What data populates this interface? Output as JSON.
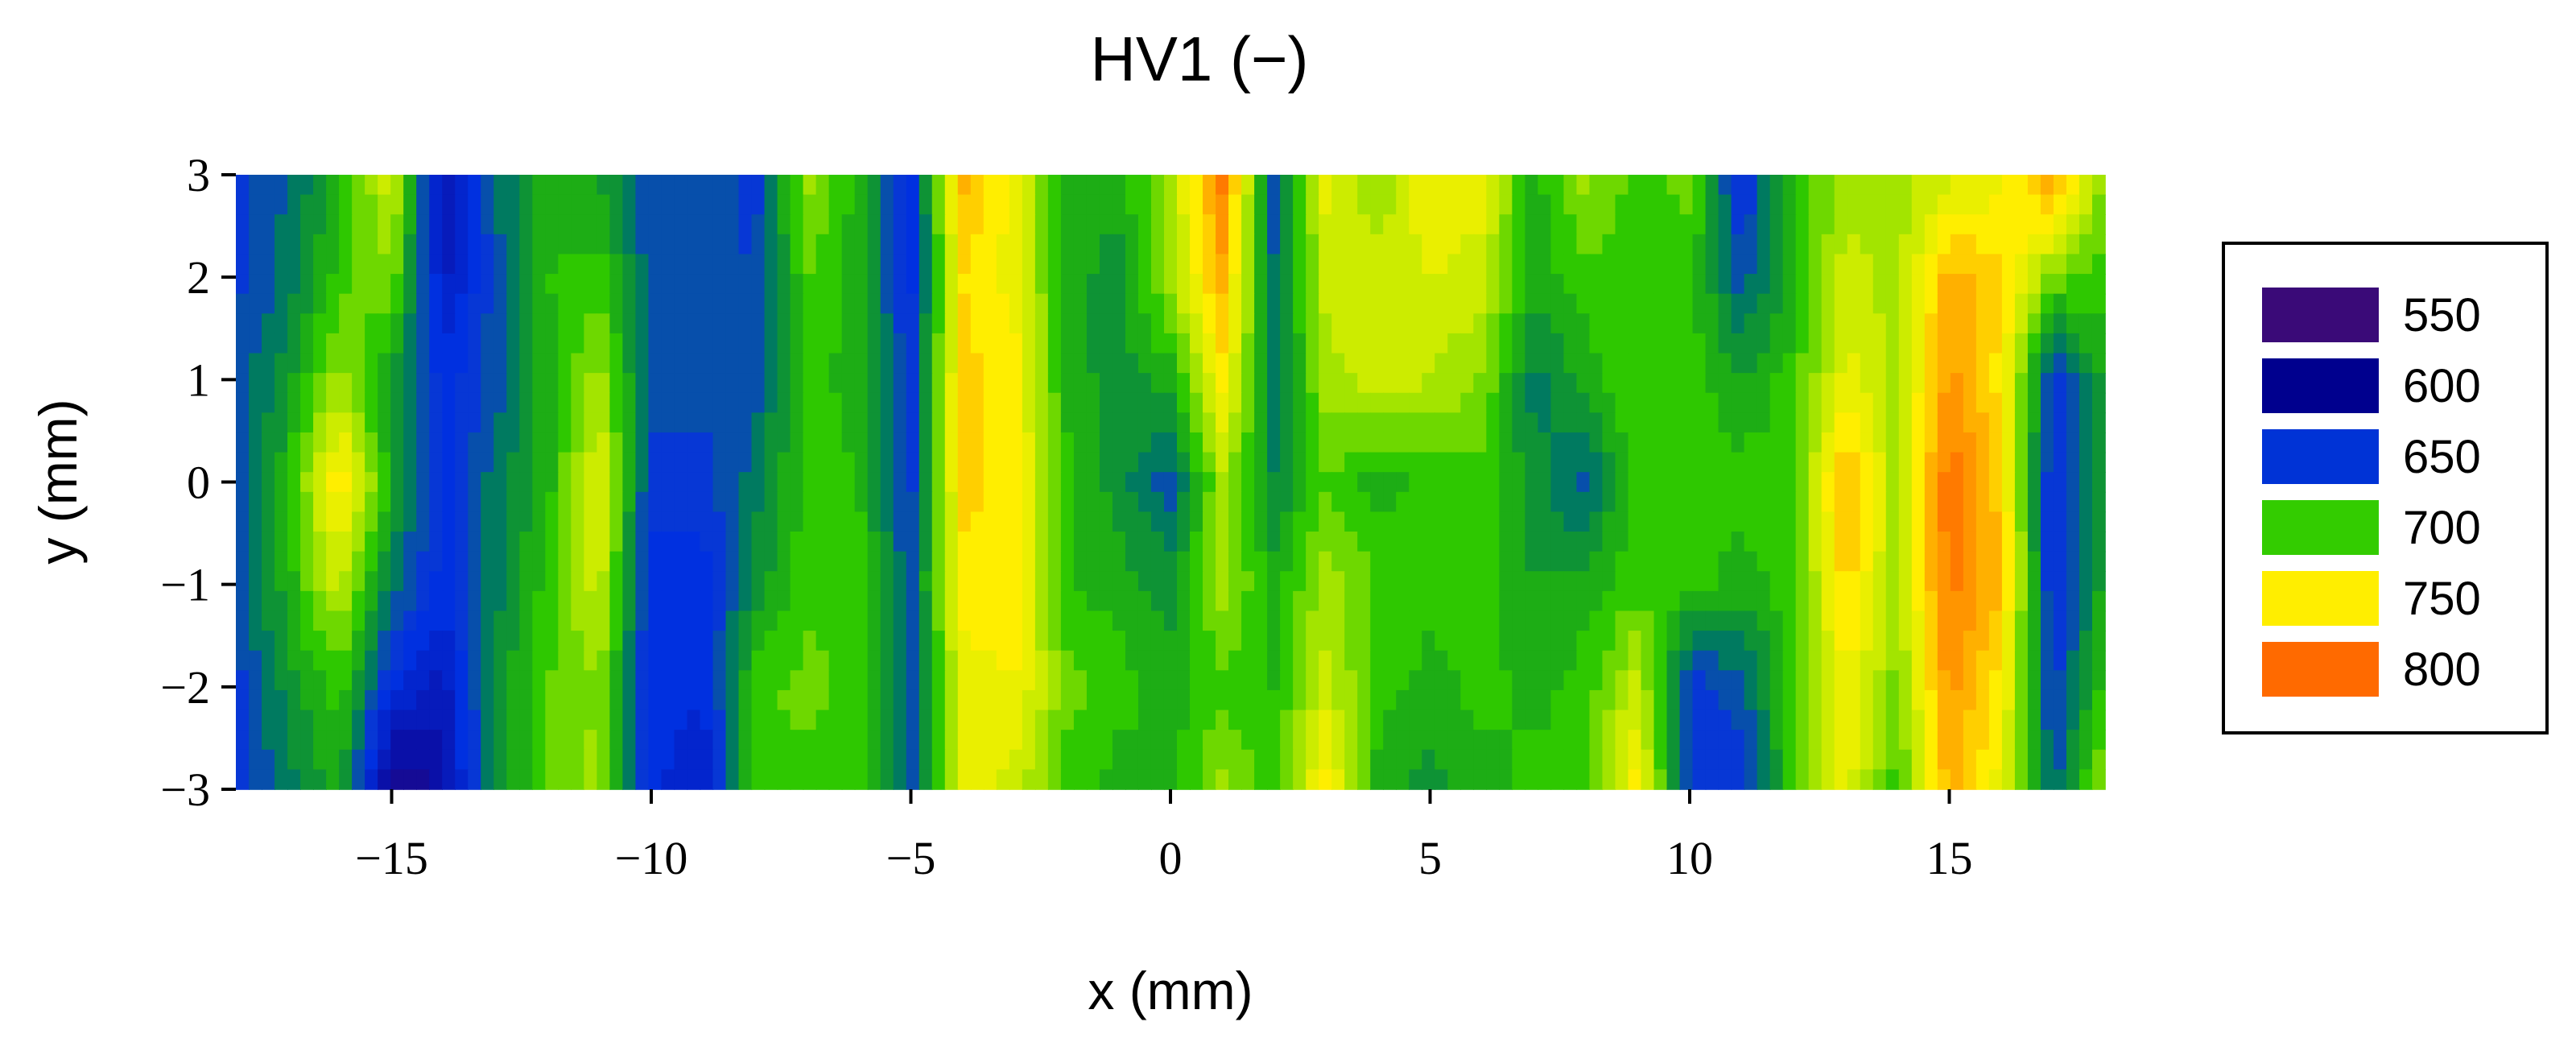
{
  "chart_data": {
    "type": "heatmap",
    "title": "HV1 (−)",
    "xlabel": "x (mm)",
    "ylabel": "y (mm)",
    "xlim": [
      -18,
      18
    ],
    "ylim": [
      -3,
      3
    ],
    "x_ticks": [
      -15,
      -10,
      -5,
      0,
      5,
      10,
      15
    ],
    "x_tick_labels": [
      "−15",
      "−10",
      "−5",
      "0",
      "5",
      "10",
      "15"
    ],
    "y_ticks": [
      3,
      2,
      1,
      0,
      -1,
      -2,
      -3
    ],
    "y_tick_labels": [
      "3",
      "2",
      "1",
      "0",
      "−1",
      "−2",
      "−3"
    ],
    "x": [
      -18,
      -17,
      -16,
      -15,
      -14,
      -13,
      -12,
      -11,
      -10,
      -9,
      -8,
      -7,
      -6,
      -5,
      -4,
      -3,
      -2,
      -1,
      0,
      1,
      2,
      3,
      4,
      5,
      6,
      7,
      8,
      9,
      10,
      11,
      12,
      13,
      14,
      15,
      16,
      17,
      18
    ],
    "y": [
      3,
      2,
      1,
      0,
      -1,
      -2,
      -3
    ],
    "z": [
      [
        650,
        665,
        690,
        735,
        610,
        665,
        690,
        685,
        655,
        665,
        650,
        720,
        690,
        640,
        770,
        740,
        690,
        690,
        720,
        790,
        660,
        740,
        715,
        745,
        740,
        690,
        720,
        700,
        710,
        640,
        700,
        720,
        720,
        730,
        740,
        780,
        710
      ],
      [
        650,
        670,
        700,
        715,
        620,
        660,
        695,
        700,
        660,
        660,
        655,
        705,
        690,
        640,
        755,
        740,
        690,
        680,
        720,
        770,
        665,
        730,
        730,
        735,
        730,
        690,
        700,
        700,
        700,
        660,
        690,
        730,
        720,
        770,
        760,
        710,
        700
      ],
      [
        660,
        680,
        720,
        680,
        640,
        660,
        690,
        720,
        660,
        660,
        660,
        700,
        690,
        650,
        760,
        750,
        690,
        680,
        690,
        750,
        670,
        720,
        730,
        725,
        715,
        670,
        690,
        705,
        700,
        685,
        700,
        740,
        720,
        780,
        750,
        650,
        690
      ],
      [
        655,
        695,
        755,
        690,
        640,
        670,
        690,
        740,
        650,
        650,
        670,
        700,
        695,
        650,
        760,
        750,
        700,
        680,
        660,
        720,
        675,
        705,
        690,
        700,
        700,
        680,
        660,
        705,
        700,
        700,
        700,
        770,
        720,
        795,
        760,
        640,
        690
      ],
      [
        660,
        690,
        730,
        670,
        640,
        670,
        700,
        730,
        640,
        640,
        680,
        700,
        700,
        660,
        750,
        750,
        695,
        690,
        680,
        720,
        690,
        720,
        705,
        700,
        700,
        685,
        690,
        700,
        700,
        690,
        700,
        760,
        720,
        790,
        765,
        640,
        690
      ],
      [
        650,
        680,
        700,
        640,
        620,
        680,
        705,
        715,
        640,
        640,
        700,
        710,
        700,
        660,
        740,
        745,
        710,
        700,
        690,
        700,
        695,
        730,
        700,
        690,
        700,
        690,
        700,
        730,
        650,
        660,
        700,
        745,
        710,
        780,
        750,
        650,
        700
      ],
      [
        650,
        670,
        690,
        590,
        610,
        680,
        705,
        720,
        640,
        620,
        705,
        700,
        700,
        660,
        740,
        730,
        700,
        690,
        690,
        720,
        700,
        750,
        690,
        680,
        690,
        700,
        700,
        750,
        650,
        650,
        700,
        740,
        700,
        770,
        740,
        660,
        720
      ]
    ],
    "legend": {
      "levels": [
        "550",
        "600",
        "650",
        "700",
        "750",
        "800"
      ],
      "colors": [
        "#3a0a78",
        "#00008e",
        "#0033d6",
        "#33cc00",
        "#ffee00",
        "#ff6a00"
      ],
      "placement": "right"
    },
    "colormap": [
      {
        "v": 550,
        "c": "#2e0a66"
      },
      {
        "v": 580,
        "c": "#2a0070"
      },
      {
        "v": 610,
        "c": "#0a10a8"
      },
      {
        "v": 640,
        "c": "#0030e0"
      },
      {
        "v": 655,
        "c": "#0a3ad0"
      },
      {
        "v": 670,
        "c": "#007a60"
      },
      {
        "v": 685,
        "c": "#15a020"
      },
      {
        "v": 700,
        "c": "#2ec800"
      },
      {
        "v": 715,
        "c": "#8ee000"
      },
      {
        "v": 735,
        "c": "#e0f000"
      },
      {
        "v": 750,
        "c": "#ffee00"
      },
      {
        "v": 770,
        "c": "#ffb000"
      },
      {
        "v": 790,
        "c": "#ff7a00"
      },
      {
        "v": 810,
        "c": "#ff3000"
      }
    ],
    "grid": false
  }
}
